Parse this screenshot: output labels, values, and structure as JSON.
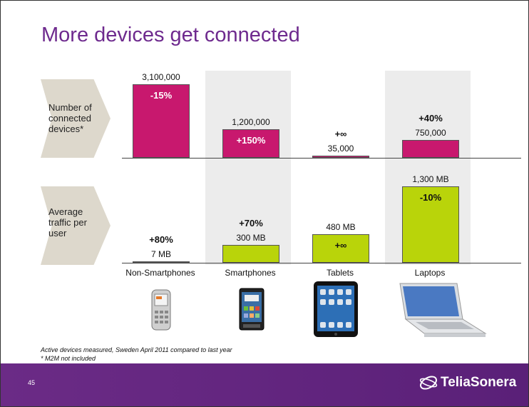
{
  "title": "More devices get connected",
  "row_labels": {
    "devices": [
      "Number of",
      "connected",
      "devices*"
    ],
    "traffic": [
      "Average",
      "traffic per",
      "user"
    ]
  },
  "chart_data": [
    {
      "type": "bar",
      "categories": [
        "Non-Smartphones",
        "Smartphones",
        "Tablets",
        "Laptops"
      ],
      "values": [
        3100000,
        1200000,
        35000,
        750000
      ],
      "value_labels": [
        "3,100,000",
        "1,200,000",
        "35,000",
        "750,000"
      ],
      "change_labels": [
        "-15%",
        "+150%",
        "+∞",
        "+40%"
      ],
      "ylim": [
        0,
        3100000
      ],
      "color": "#c8186e"
    },
    {
      "type": "bar",
      "categories": [
        "Non-Smartphones",
        "Smartphones",
        "Tablets",
        "Laptops"
      ],
      "values": [
        7,
        300,
        480,
        1300
      ],
      "value_labels": [
        "7 MB",
        "300 MB",
        "480 MB",
        "1,300 MB"
      ],
      "change_labels": [
        "+80%",
        "+70%",
        "+∞",
        "-10%"
      ],
      "ylim": [
        0,
        1300
      ],
      "color": "#b9d40a"
    }
  ],
  "footnotes": [
    "Active devices measured, Sweden April 2011 compared to last year",
    "* M2M not included"
  ],
  "page_number": "45",
  "brand": "TeliaSonera",
  "colors": {
    "title": "#6e2a8e",
    "footer": "#6b2b86",
    "devices_bar": "#c8186e",
    "traffic_bar": "#b9d40a"
  },
  "device_icons": [
    "phone-icon",
    "smartphone-icon",
    "tablet-icon",
    "laptop-icon"
  ]
}
